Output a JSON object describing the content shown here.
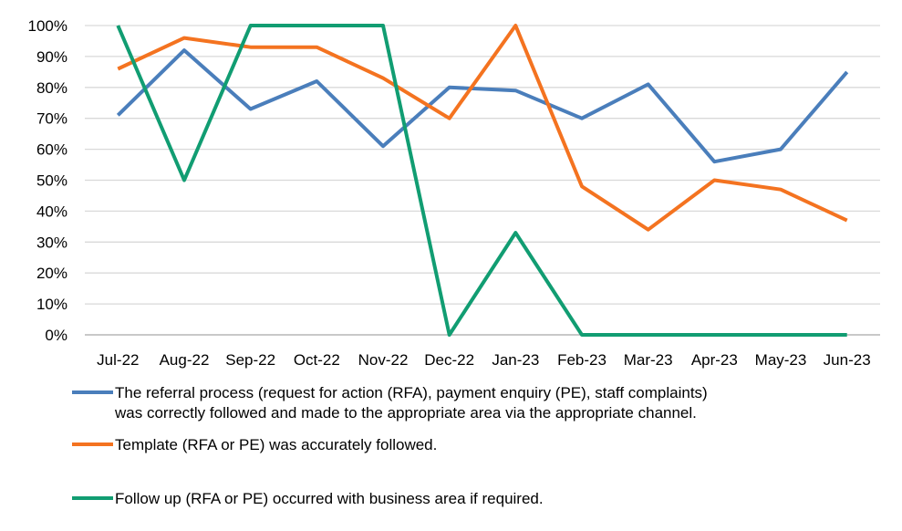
{
  "chart_data": {
    "type": "line",
    "title": "",
    "xlabel": "",
    "ylabel": "",
    "ylim": [
      0,
      100
    ],
    "y_ticks": [
      "0%",
      "10%",
      "20%",
      "30%",
      "40%",
      "50%",
      "60%",
      "70%",
      "80%",
      "90%",
      "100%"
    ],
    "grid": "horizontal",
    "legend_position": "bottom",
    "categories": [
      "Jul-22",
      "Aug-22",
      "Sep-22",
      "Oct-22",
      "Nov-22",
      "Dec-22",
      "Jan-23",
      "Feb-23",
      "Mar-23",
      "Apr-23",
      "May-23",
      "Jun-23"
    ],
    "series": [
      {
        "name_lines": [
          "The referral process (request for action (RFA), payment enquiry (PE), staff complaints)",
          "was correctly followed and made to the appropriate area via the appropriate channel."
        ],
        "color": "#4a7ebb",
        "values": [
          71,
          92,
          73,
          82,
          61,
          80,
          79,
          70,
          81,
          56,
          60,
          85
        ]
      },
      {
        "name_lines": [
          "Template (RFA or PE) was accurately followed."
        ],
        "color": "#f47320",
        "values": [
          86,
          96,
          93,
          93,
          83,
          70,
          100,
          48,
          34,
          50,
          47,
          37
        ]
      },
      {
        "name_lines": [
          "Follow up (RFA or PE) occurred with business area if required."
        ],
        "color": "#119d72",
        "values": [
          100,
          50,
          100,
          100,
          100,
          0,
          33,
          0,
          0,
          0,
          0,
          0
        ]
      }
    ]
  }
}
